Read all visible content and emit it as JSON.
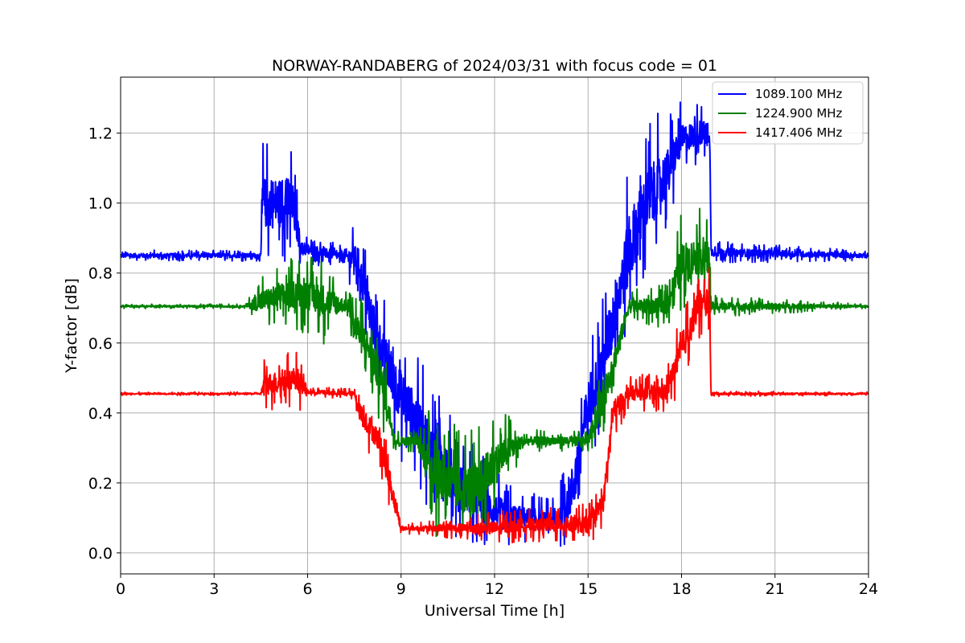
{
  "chart_data": {
    "type": "line",
    "title": "NORWAY-RANDABERG of 2024/03/31 with focus code = 01",
    "xlabel": "Universal Time [h]",
    "ylabel": "Y-factor [dB]",
    "xlim": [
      0,
      24
    ],
    "ylim": [
      -0.06,
      1.36
    ],
    "xticks": [
      0,
      3,
      6,
      9,
      12,
      15,
      18,
      21,
      24
    ],
    "xtick_labels": [
      "0",
      "3",
      "6",
      "9",
      "12",
      "15",
      "18",
      "21",
      "24"
    ],
    "yticks": [
      0.0,
      0.2,
      0.4,
      0.6,
      0.8,
      1.0,
      1.2
    ],
    "ytick_labels": [
      "0.0",
      "0.2",
      "0.4",
      "0.6",
      "0.8",
      "1.0",
      "1.2"
    ],
    "grid": true,
    "legend_position": "top-right",
    "series": [
      {
        "name": "1089.100 MHz",
        "color": "#0000ff",
        "baseline": [
          [
            0,
            0.85
          ],
          [
            4.5,
            0.85
          ],
          [
            4.55,
            1.0
          ],
          [
            5.5,
            1.0
          ],
          [
            5.8,
            0.87
          ],
          [
            7.0,
            0.85
          ],
          [
            7.6,
            0.84
          ],
          [
            8.0,
            0.68
          ],
          [
            8.5,
            0.55
          ],
          [
            9.0,
            0.45
          ],
          [
            9.5,
            0.38
          ],
          [
            10.0,
            0.3
          ],
          [
            10.5,
            0.25
          ],
          [
            11.0,
            0.18
          ],
          [
            11.5,
            0.15
          ],
          [
            12.0,
            0.12
          ],
          [
            12.5,
            0.1
          ],
          [
            13.0,
            0.1
          ],
          [
            13.5,
            0.09
          ],
          [
            14.0,
            0.09
          ],
          [
            14.5,
            0.18
          ],
          [
            15.0,
            0.42
          ],
          [
            15.5,
            0.55
          ],
          [
            16.0,
            0.75
          ],
          [
            16.5,
            0.92
          ],
          [
            17.0,
            1.02
          ],
          [
            17.5,
            1.08
          ],
          [
            18.0,
            1.18
          ],
          [
            18.5,
            1.2
          ],
          [
            18.9,
            1.2
          ],
          [
            18.95,
            0.86
          ],
          [
            24,
            0.85
          ]
        ],
        "noise": [
          [
            0,
            0.01
          ],
          [
            4.5,
            0.01
          ],
          [
            4.55,
            0.12
          ],
          [
            5.5,
            0.12
          ],
          [
            5.8,
            0.03
          ],
          [
            7.0,
            0.02
          ],
          [
            7.5,
            0.06
          ],
          [
            8.0,
            0.1
          ],
          [
            9.0,
            0.12
          ],
          [
            10.0,
            0.12
          ],
          [
            11.0,
            0.1
          ],
          [
            12.0,
            0.08
          ],
          [
            13.0,
            0.05
          ],
          [
            14.0,
            0.04
          ],
          [
            14.5,
            0.12
          ],
          [
            15.5,
            0.12
          ],
          [
            16.0,
            0.15
          ],
          [
            17.0,
            0.15
          ],
          [
            18.0,
            0.07
          ],
          [
            18.9,
            0.05
          ],
          [
            18.95,
            0.02
          ],
          [
            24,
            0.01
          ]
        ]
      },
      {
        "name": "1224.900 MHz",
        "color": "#008000",
        "baseline": [
          [
            0,
            0.705
          ],
          [
            4.0,
            0.705
          ],
          [
            4.5,
            0.72
          ],
          [
            5.5,
            0.74
          ],
          [
            6.0,
            0.74
          ],
          [
            6.5,
            0.72
          ],
          [
            7.3,
            0.705
          ],
          [
            7.5,
            0.65
          ],
          [
            8.0,
            0.58
          ],
          [
            8.5,
            0.45
          ],
          [
            8.8,
            0.32
          ],
          [
            9.5,
            0.32
          ],
          [
            10.0,
            0.24
          ],
          [
            10.5,
            0.2
          ],
          [
            11.0,
            0.18
          ],
          [
            11.5,
            0.2
          ],
          [
            12.0,
            0.25
          ],
          [
            12.5,
            0.3
          ],
          [
            13.0,
            0.32
          ],
          [
            15.0,
            0.32
          ],
          [
            15.5,
            0.45
          ],
          [
            16.0,
            0.6
          ],
          [
            16.3,
            0.705
          ],
          [
            17.5,
            0.705
          ],
          [
            18.0,
            0.82
          ],
          [
            18.5,
            0.85
          ],
          [
            18.9,
            0.84
          ],
          [
            18.95,
            0.705
          ],
          [
            24,
            0.705
          ]
        ],
        "noise": [
          [
            0,
            0.004
          ],
          [
            4.0,
            0.004
          ],
          [
            4.5,
            0.05
          ],
          [
            6.5,
            0.08
          ],
          [
            7.3,
            0.02
          ],
          [
            7.5,
            0.08
          ],
          [
            8.5,
            0.08
          ],
          [
            8.8,
            0.02
          ],
          [
            9.5,
            0.02
          ],
          [
            10.0,
            0.12
          ],
          [
            12.0,
            0.1
          ],
          [
            13.0,
            0.02
          ],
          [
            15.0,
            0.02
          ],
          [
            15.5,
            0.08
          ],
          [
            16.3,
            0.03
          ],
          [
            17.5,
            0.04
          ],
          [
            18.0,
            0.1
          ],
          [
            18.9,
            0.08
          ],
          [
            18.95,
            0.02
          ],
          [
            24,
            0.004
          ]
        ]
      },
      {
        "name": "1417.406 MHz",
        "color": "#ff0000",
        "baseline": [
          [
            0,
            0.455
          ],
          [
            4.5,
            0.455
          ],
          [
            4.6,
            0.48
          ],
          [
            5.6,
            0.5
          ],
          [
            6.0,
            0.46
          ],
          [
            7.5,
            0.455
          ],
          [
            7.7,
            0.4
          ],
          [
            8.3,
            0.32
          ],
          [
            8.7,
            0.18
          ],
          [
            9.0,
            0.07
          ],
          [
            12.0,
            0.07
          ],
          [
            13.0,
            0.08
          ],
          [
            15.0,
            0.08
          ],
          [
            15.5,
            0.15
          ],
          [
            15.8,
            0.4
          ],
          [
            16.3,
            0.455
          ],
          [
            17.5,
            0.46
          ],
          [
            18.0,
            0.58
          ],
          [
            18.5,
            0.7
          ],
          [
            18.9,
            0.72
          ],
          [
            18.95,
            0.455
          ],
          [
            24,
            0.455
          ]
        ],
        "noise": [
          [
            0,
            0.003
          ],
          [
            4.5,
            0.003
          ],
          [
            4.6,
            0.05
          ],
          [
            5.8,
            0.05
          ],
          [
            6.0,
            0.01
          ],
          [
            7.5,
            0.01
          ],
          [
            7.7,
            0.05
          ],
          [
            8.7,
            0.05
          ],
          [
            9.0,
            0.01
          ],
          [
            9.5,
            0.01
          ],
          [
            12.0,
            0.03
          ],
          [
            13.5,
            0.03
          ],
          [
            15.0,
            0.04
          ],
          [
            15.8,
            0.05
          ],
          [
            16.3,
            0.03
          ],
          [
            17.5,
            0.04
          ],
          [
            18.0,
            0.07
          ],
          [
            18.9,
            0.06
          ],
          [
            18.95,
            0.005
          ],
          [
            24,
            0.003
          ]
        ]
      }
    ]
  }
}
